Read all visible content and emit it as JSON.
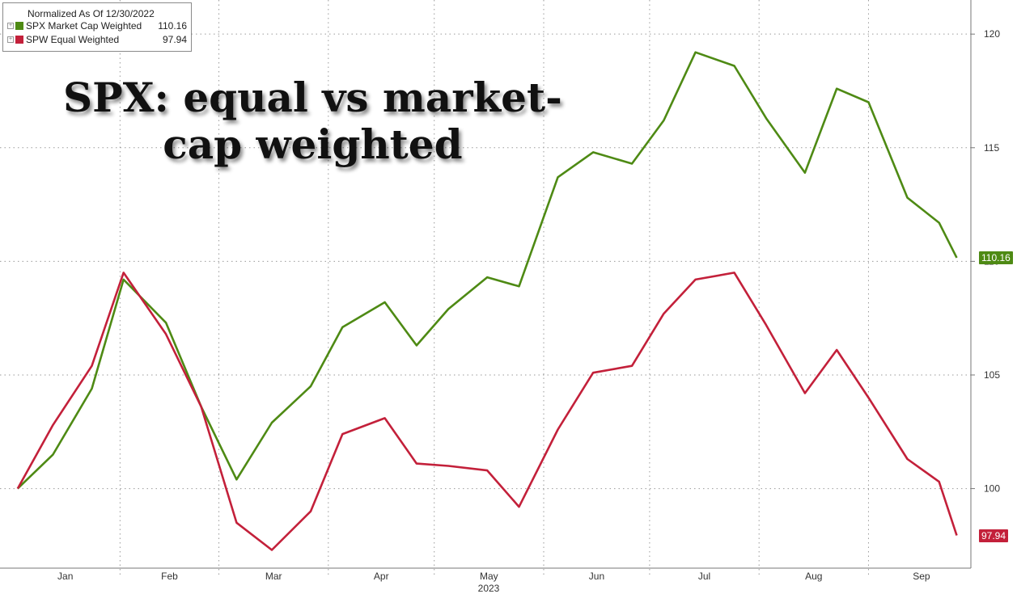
{
  "headline": {
    "line1": "SPX: equal vs market-",
    "line2": "cap weighted"
  },
  "legend": {
    "header": "Normalized As Of 12/30/2022",
    "items": [
      {
        "name": "SPX Market Cap Weighted",
        "value": "110.16",
        "color": "#4e8a14"
      },
      {
        "name": "SPW Equal Weighted",
        "value": "97.94",
        "color": "#c3203a"
      }
    ]
  },
  "chart_data": {
    "type": "line",
    "xlabel": "2023",
    "ylabel": "",
    "ylim": [
      96.5,
      121.5
    ],
    "yticks": [
      100,
      105,
      110,
      115,
      120
    ],
    "x": [
      "2023-01-03",
      "2023-01-13",
      "2023-01-24",
      "2023-02-02",
      "2023-02-14",
      "2023-02-24",
      "2023-03-06",
      "2023-03-16",
      "2023-03-27",
      "2023-04-05",
      "2023-04-17",
      "2023-04-26",
      "2023-05-05",
      "2023-05-16",
      "2023-05-25",
      "2023-06-05",
      "2023-06-15",
      "2023-06-26",
      "2023-07-05",
      "2023-07-14",
      "2023-07-25",
      "2023-08-03",
      "2023-08-14",
      "2023-08-23",
      "2023-09-01",
      "2023-09-12",
      "2023-09-21",
      "2023-09-26"
    ],
    "x_tick_labels": [
      "Jan",
      "Feb",
      "Mar",
      "Apr",
      "May",
      "Jun",
      "Jul",
      "Aug",
      "Sep"
    ],
    "grid": true,
    "legend_position": "top-left",
    "series": [
      {
        "name": "SPX Market Cap Weighted",
        "color": "#4e8a14",
        "last": 110.16,
        "values": [
          100.0,
          101.5,
          104.4,
          109.2,
          107.3,
          103.6,
          100.4,
          102.9,
          104.5,
          107.1,
          108.2,
          106.3,
          107.9,
          109.3,
          108.9,
          113.7,
          114.8,
          114.3,
          116.2,
          119.2,
          118.6,
          116.3,
          113.9,
          117.6,
          117.0,
          112.8,
          111.7,
          110.16
        ]
      },
      {
        "name": "SPW Equal Weighted",
        "color": "#c3203a",
        "last": 97.94,
        "values": [
          100.0,
          102.8,
          105.4,
          109.5,
          106.8,
          103.6,
          98.5,
          97.3,
          99.0,
          102.4,
          103.1,
          101.1,
          101.0,
          100.8,
          99.2,
          102.6,
          105.1,
          105.4,
          107.7,
          109.2,
          109.5,
          107.2,
          104.2,
          106.1,
          104.0,
          101.3,
          100.3,
          97.94
        ]
      }
    ]
  }
}
